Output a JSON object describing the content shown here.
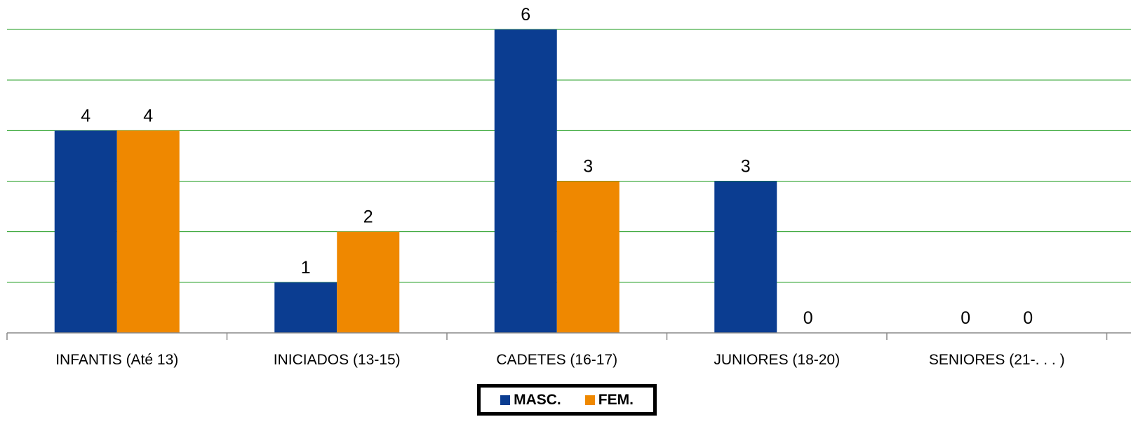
{
  "chart_data": {
    "type": "bar",
    "categories": [
      "INFANTIS (Até 13)",
      "INICIADOS (13-15)",
      "CADETES (16-17)",
      "JUNIORES (18-20)",
      "SENIORES (21-. . . )"
    ],
    "series": [
      {
        "name": "MASC.",
        "values": [
          4,
          1,
          6,
          3,
          0
        ],
        "color": "#0b3d91"
      },
      {
        "name": "FEM.",
        "values": [
          4,
          2,
          3,
          0,
          0
        ],
        "color": "#ef8800"
      }
    ],
    "ylim": [
      0,
      6
    ],
    "gridlines": true,
    "grid_color": "#1a9a1a",
    "data_labels": true,
    "legend_position": "bottom-center"
  }
}
